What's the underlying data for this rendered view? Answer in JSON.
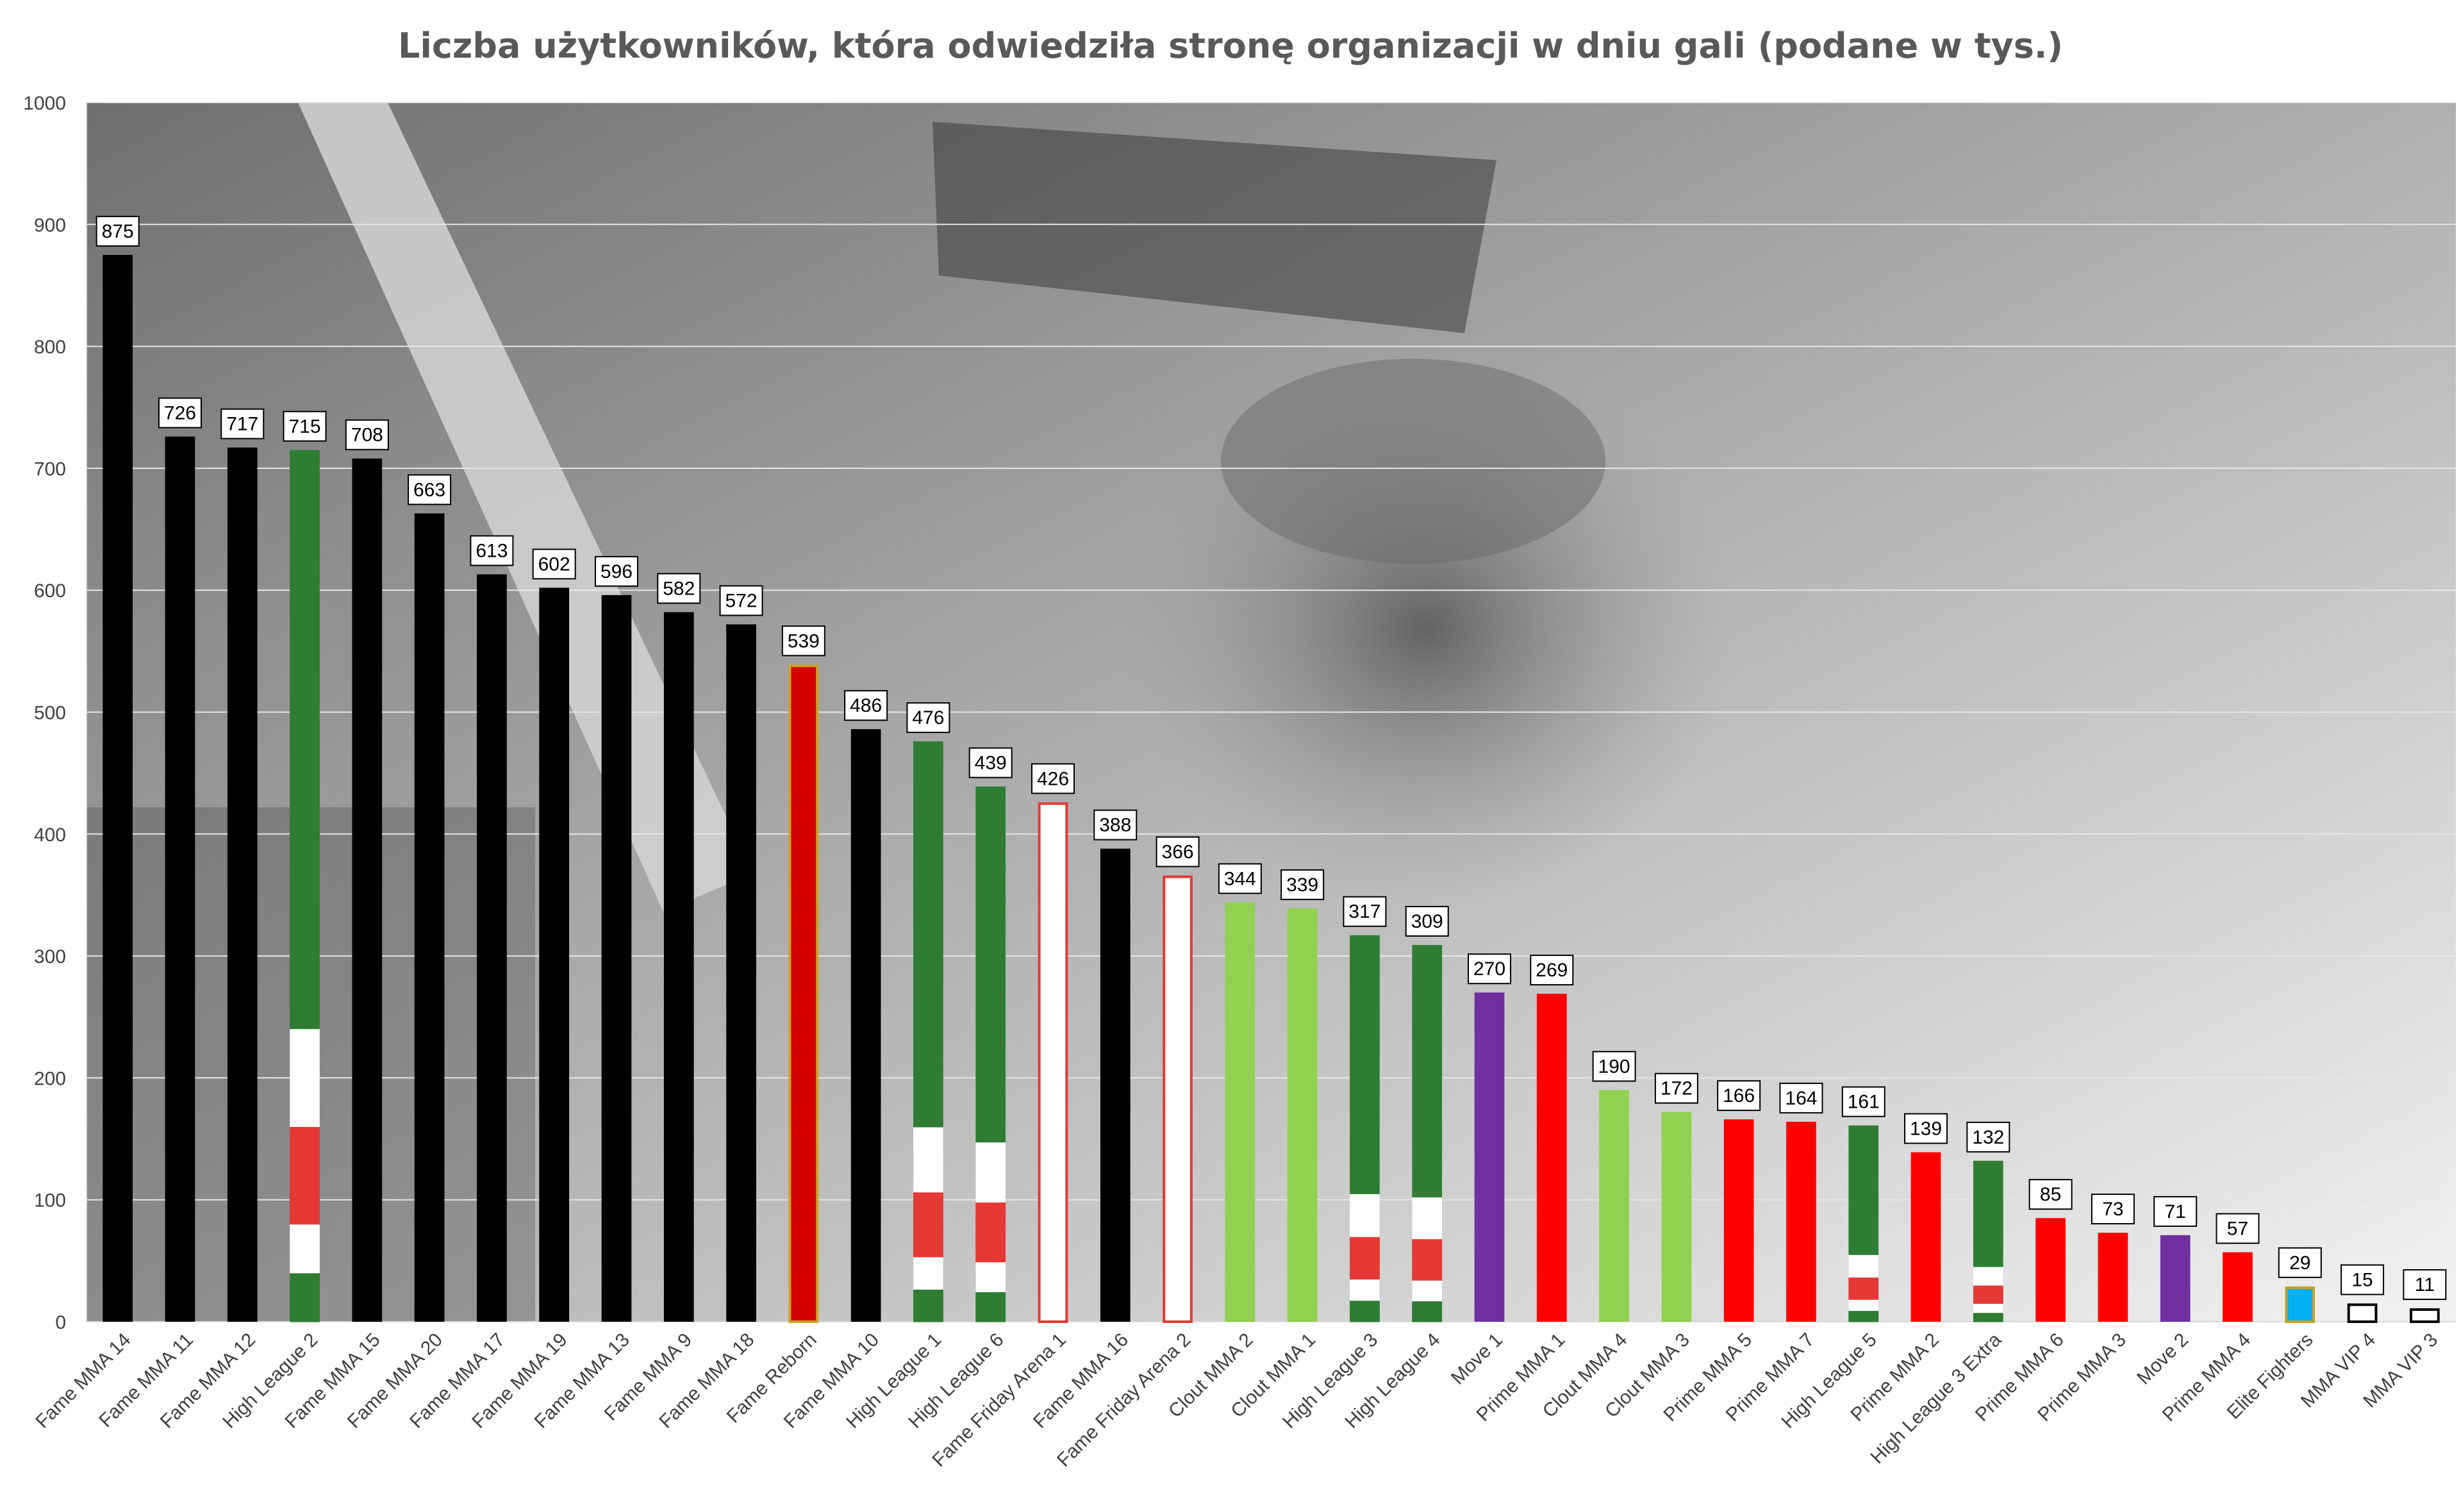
{
  "chart_data": {
    "type": "bar",
    "title": "Liczba użytkowników, która odwiedziła stronę organizacji w dniu gali (podane w tys.)",
    "xlabel": "",
    "ylabel": "",
    "ylim": [
      0,
      1000
    ],
    "yticks": [
      0,
      100,
      200,
      300,
      400,
      500,
      600,
      700,
      800,
      900,
      1000
    ],
    "grid": true,
    "legend": "none",
    "categories": [
      "Fame MMA 14",
      "Fame MMA 11",
      "Fame MMA 12",
      "High League 2",
      "Fame MMA 15",
      "Fame MMA 20",
      "Fame MMA 17",
      "Fame MMA 19",
      "Fame MMA 13",
      "Fame MMA 9",
      "Fame MMA 18",
      "Fame Reborn",
      "Fame MMA 10",
      "High League 1",
      "High League 6",
      "Fame Friday Arena 1",
      "Fame MMA 16",
      "Fame Friday Arena 2",
      "Clout MMA 2",
      "Clout MMA 1",
      "High League 3",
      "High League 4",
      "Move 1",
      "Prime MMA 1",
      "Clout MMA 4",
      "Clout MMA 3",
      "Prime MMA 5",
      "Prime MMA 7",
      "High League 5",
      "Prime MMA 2",
      "High League 3 Extra",
      "Prime MMA 6",
      "Prime MMA 3",
      "Move 2",
      "Prime MMA 4",
      "Elite Fighters",
      "MMA VIP 4",
      "MMA VIP 3"
    ],
    "values": [
      875,
      726,
      717,
      715,
      708,
      663,
      613,
      602,
      596,
      582,
      572,
      539,
      486,
      476,
      439,
      426,
      388,
      366,
      344,
      339,
      317,
      309,
      270,
      269,
      190,
      172,
      166,
      164,
      161,
      139,
      132,
      85,
      73,
      71,
      57,
      29,
      15,
      11
    ],
    "value_labels": [
      "875",
      "726",
      "717",
      "715",
      "708",
      "663",
      "613",
      "602",
      "596",
      "582",
      "572",
      "539",
      "486",
      "476",
      "439",
      "426",
      "388",
      "366",
      "344",
      "339",
      "317",
      "309",
      "270",
      "269",
      "190",
      "172",
      "166",
      "164",
      "161",
      "139",
      "132",
      "85",
      "73",
      "71",
      "57",
      "29",
      "15",
      "11"
    ],
    "bar_styles": [
      "black",
      "black",
      "black",
      "highleague",
      "black",
      "black",
      "black",
      "black",
      "black",
      "black",
      "black",
      "reborn",
      "black",
      "highleague",
      "highleague",
      "fridayarena",
      "black",
      "fridayarena",
      "clout",
      "clout",
      "highleague",
      "highleague",
      "move",
      "prime",
      "clout",
      "clout",
      "prime",
      "prime",
      "highleague",
      "prime",
      "highleague",
      "prime",
      "prime",
      "move",
      "prime",
      "elite",
      "vip",
      "vip"
    ],
    "colors": {
      "black": "#000000",
      "highleague_green": "#2e7d32",
      "flag_white": "#ffffff",
      "flag_red": "#e53935",
      "reborn_fill": "#d50000",
      "reborn_border": "#c9a227",
      "fridayarena_border": "#e53935",
      "clout": "#92d050",
      "move": "#7030a0",
      "prime": "#ff0000",
      "elite_fill": "#00b0f0",
      "elite_border": "#c9a227",
      "vip_border": "#000000"
    }
  }
}
